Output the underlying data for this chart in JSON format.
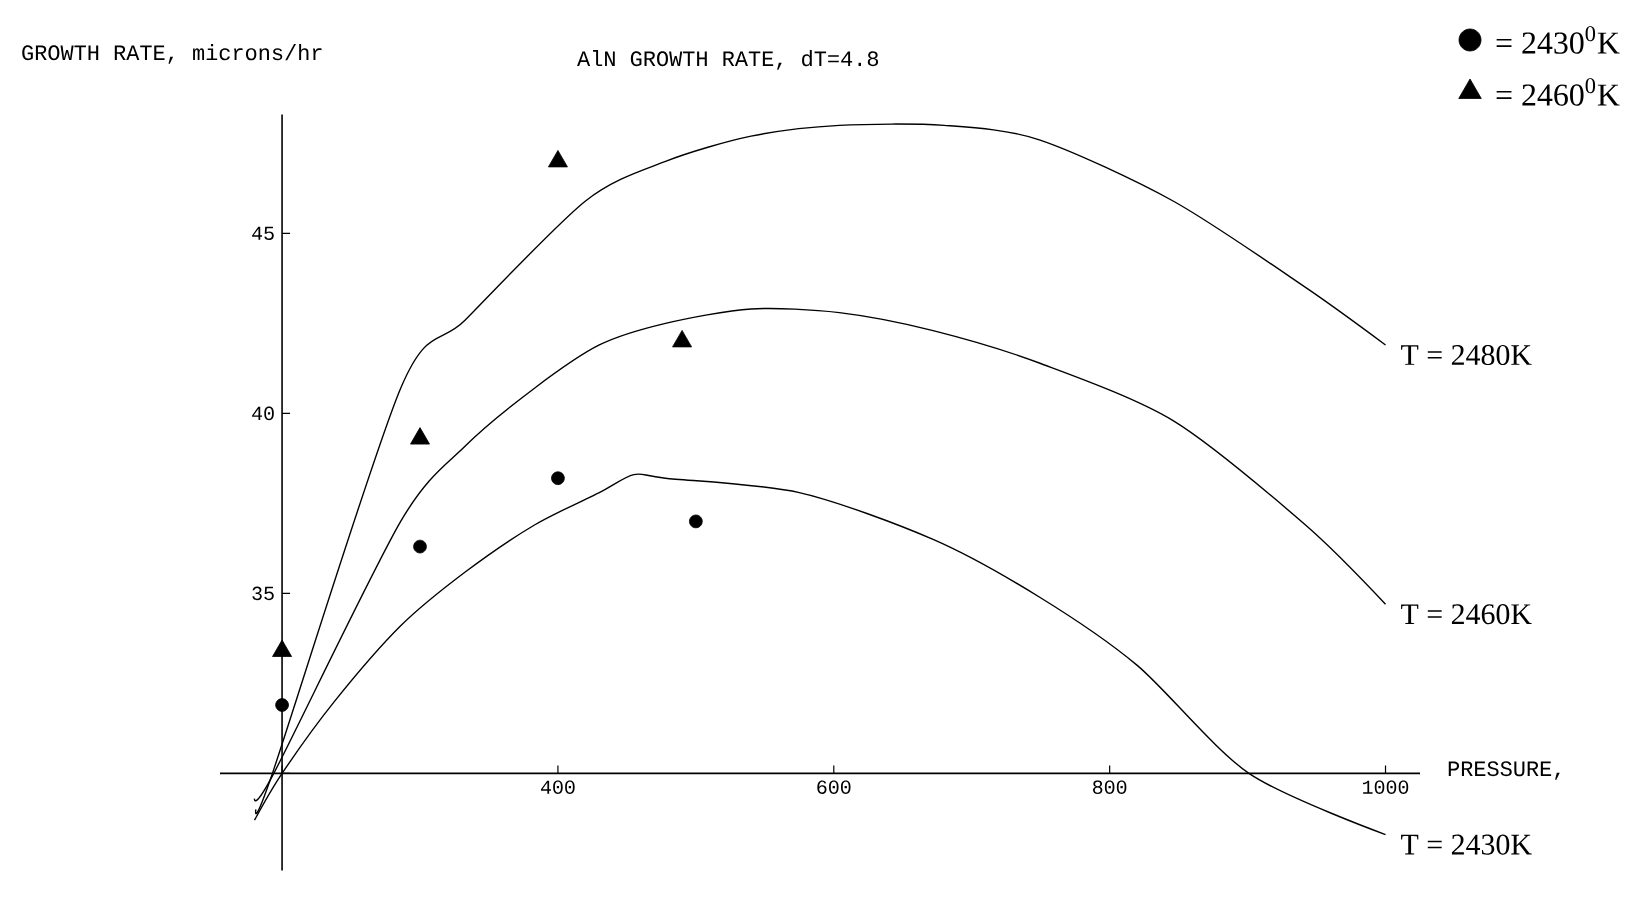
{
  "chart_data": {
    "type": "line",
    "title": "AlN GROWTH RATE, dT=4.8",
    "ylabel": "GROWTH RATE, microns/hr",
    "xlabel": "PRESSURE,",
    "xlim": [
      155,
      1025
    ],
    "ylim": [
      27.3,
      48.3
    ],
    "xticks": [
      {
        "value": 200,
        "label": null
      },
      400,
      600,
      800,
      1000
    ],
    "yticks": [
      {
        "value": 30,
        "label": null
      },
      35,
      40,
      45
    ],
    "legend": "top right",
    "series": [
      {
        "name": "T = 2480K",
        "color": "#000000",
        "x": [
          181,
          193,
          286,
          333,
          420,
          478,
          540,
          604,
          680,
          749,
          846,
          942,
          1000
        ],
        "values": [
          29.0,
          30.0,
          40.7,
          42.6,
          45.9,
          47.0,
          47.7,
          48.0,
          48.0,
          47.6,
          45.9,
          43.5,
          41.9
        ]
      },
      {
        "name": "T = 2460K",
        "color": "#000000",
        "x": [
          180,
          194,
          286,
          333,
          383,
          430,
          478,
          540,
          604,
          672,
          749,
          846,
          942,
          1000
        ],
        "values": [
          29.3,
          30.0,
          37.0,
          39.1,
          40.7,
          41.9,
          42.5,
          42.9,
          42.8,
          42.3,
          41.4,
          39.8,
          36.9,
          34.7
        ]
      },
      {
        "name": "T = 2430K",
        "color": "#000000",
        "x": [
          180,
          200,
          238,
          286,
          333,
          383,
          430,
          455,
          478,
          575,
          672,
          749,
          820,
          901,
          1000
        ],
        "values": [
          28.7,
          30.0,
          32.0,
          34.1,
          35.6,
          36.9,
          37.8,
          38.3,
          38.2,
          37.8,
          36.5,
          34.9,
          33.0,
          30.0,
          28.3
        ]
      },
      {
        "name": "= 2430$^{0}$K",
        "type": "scatter",
        "marker": "circle",
        "color": "#000000",
        "x": [
          200,
          300,
          400,
          500
        ],
        "values": [
          31.9,
          36.3,
          38.2,
          37.0
        ]
      },
      {
        "name": "= 2460$^{0}$K",
        "type": "scatter",
        "marker": "triangle",
        "color": "#000000",
        "x": [
          200,
          300,
          400,
          490
        ],
        "values": [
          33.4,
          39.3,
          47.0,
          42.0
        ]
      }
    ]
  }
}
